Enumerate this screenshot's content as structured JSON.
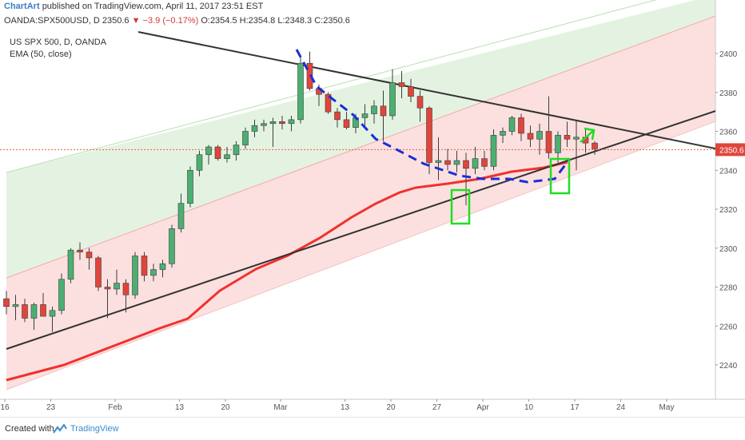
{
  "header": {
    "brand": "ChartArt",
    "published": "published on TradingView.com, April 11, 2017 23:51 EST"
  },
  "quote": {
    "symbol": "OANDA:SPX500USD, D",
    "last": "2350.6",
    "change": "▼ −3.9 (−0.17%)",
    "ohlc": "O:2354.5 H:2354.8 L:2348.3 C:2350.6"
  },
  "legend": {
    "symbol_line": "US SPX 500, D, OANDA",
    "indicator_line": "EMA (50, close)"
  },
  "footer": {
    "created_with": "Created with",
    "brand": "TradingView"
  },
  "colors": {
    "up": "#4caf72",
    "down": "#e0453b",
    "ema": "#f0312f",
    "trendline": "#333333",
    "dashed": "#1a2fd6",
    "box": "#22dd22",
    "price_line": "#e06040",
    "channel_green": "#e4f3e1",
    "channel_red": "#fbe0df"
  },
  "chart_data": {
    "type": "candlestick",
    "ylim": [
      2226,
      2414
    ],
    "y_ticks": [
      2240,
      2260,
      2280,
      2300,
      2320,
      2340,
      2360,
      2380,
      2400
    ],
    "x_tick_labels": [
      {
        "i": 0,
        "label": "16"
      },
      {
        "i": 5,
        "label": "23"
      },
      {
        "i": 12,
        "label": "Feb"
      },
      {
        "i": 19,
        "label": "13"
      },
      {
        "i": 24,
        "label": "20"
      },
      {
        "i": 30,
        "label": "Mar"
      },
      {
        "i": 37,
        "label": "13"
      },
      {
        "i": 42,
        "label": "20"
      },
      {
        "i": 47,
        "label": "27"
      },
      {
        "i": 52,
        "label": "Apr"
      },
      {
        "i": 57,
        "label": "10"
      },
      {
        "i": 62,
        "label": "17"
      },
      {
        "i": 67,
        "label": "24"
      },
      {
        "i": 72,
        "label": "May"
      }
    ],
    "last_price": 2350.6,
    "candles": [
      {
        "o": 2274,
        "h": 2278,
        "l": 2266,
        "c": 2270
      },
      {
        "o": 2270,
        "h": 2276,
        "l": 2263,
        "c": 2271
      },
      {
        "o": 2271,
        "h": 2274,
        "l": 2262,
        "c": 2264
      },
      {
        "o": 2264,
        "h": 2272,
        "l": 2258,
        "c": 2271
      },
      {
        "o": 2271,
        "h": 2277,
        "l": 2265,
        "c": 2265
      },
      {
        "o": 2265,
        "h": 2270,
        "l": 2257,
        "c": 2268
      },
      {
        "o": 2268,
        "h": 2287,
        "l": 2266,
        "c": 2284
      },
      {
        "o": 2284,
        "h": 2300,
        "l": 2282,
        "c": 2299
      },
      {
        "o": 2299,
        "h": 2303,
        "l": 2294,
        "c": 2298
      },
      {
        "o": 2298,
        "h": 2300,
        "l": 2289,
        "c": 2295
      },
      {
        "o": 2295,
        "h": 2296,
        "l": 2278,
        "c": 2280
      },
      {
        "o": 2280,
        "h": 2284,
        "l": 2264,
        "c": 2279
      },
      {
        "o": 2279,
        "h": 2289,
        "l": 2276,
        "c": 2282
      },
      {
        "o": 2282,
        "h": 2284,
        "l": 2267,
        "c": 2276
      },
      {
        "o": 2276,
        "h": 2298,
        "l": 2274,
        "c": 2296
      },
      {
        "o": 2296,
        "h": 2298,
        "l": 2283,
        "c": 2286
      },
      {
        "o": 2286,
        "h": 2292,
        "l": 2283,
        "c": 2289
      },
      {
        "o": 2289,
        "h": 2294,
        "l": 2285,
        "c": 2292
      },
      {
        "o": 2292,
        "h": 2312,
        "l": 2290,
        "c": 2310
      },
      {
        "o": 2310,
        "h": 2328,
        "l": 2308,
        "c": 2323
      },
      {
        "o": 2323,
        "h": 2342,
        "l": 2321,
        "c": 2340
      },
      {
        "o": 2340,
        "h": 2350,
        "l": 2337,
        "c": 2348
      },
      {
        "o": 2348,
        "h": 2353,
        "l": 2343,
        "c": 2352
      },
      {
        "o": 2352,
        "h": 2353,
        "l": 2345,
        "c": 2346
      },
      {
        "o": 2346,
        "h": 2352,
        "l": 2344,
        "c": 2348
      },
      {
        "o": 2348,
        "h": 2355,
        "l": 2345,
        "c": 2353
      },
      {
        "o": 2353,
        "h": 2362,
        "l": 2351,
        "c": 2360
      },
      {
        "o": 2360,
        "h": 2366,
        "l": 2357,
        "c": 2363
      },
      {
        "o": 2363,
        "h": 2366,
        "l": 2360,
        "c": 2364
      },
      {
        "o": 2364,
        "h": 2367,
        "l": 2352,
        "c": 2365
      },
      {
        "o": 2365,
        "h": 2368,
        "l": 2361,
        "c": 2364
      },
      {
        "o": 2364,
        "h": 2368,
        "l": 2360,
        "c": 2366
      },
      {
        "o": 2366,
        "h": 2398,
        "l": 2364,
        "c": 2395
      },
      {
        "o": 2395,
        "h": 2401,
        "l": 2381,
        "c": 2382
      },
      {
        "o": 2382,
        "h": 2384,
        "l": 2373,
        "c": 2379
      },
      {
        "o": 2379,
        "h": 2380,
        "l": 2369,
        "c": 2370
      },
      {
        "o": 2370,
        "h": 2372,
        "l": 2362,
        "c": 2366
      },
      {
        "o": 2366,
        "h": 2370,
        "l": 2361,
        "c": 2362
      },
      {
        "o": 2362,
        "h": 2369,
        "l": 2359,
        "c": 2367
      },
      {
        "o": 2367,
        "h": 2374,
        "l": 2362,
        "c": 2369
      },
      {
        "o": 2369,
        "h": 2376,
        "l": 2364,
        "c": 2373
      },
      {
        "o": 2373,
        "h": 2381,
        "l": 2355,
        "c": 2368
      },
      {
        "o": 2368,
        "h": 2392,
        "l": 2366,
        "c": 2385
      },
      {
        "o": 2385,
        "h": 2391,
        "l": 2377,
        "c": 2383
      },
      {
        "o": 2383,
        "h": 2387,
        "l": 2375,
        "c": 2378
      },
      {
        "o": 2378,
        "h": 2381,
        "l": 2365,
        "c": 2372
      },
      {
        "o": 2372,
        "h": 2373,
        "l": 2338,
        "c": 2344
      },
      {
        "o": 2344,
        "h": 2357,
        "l": 2335,
        "c": 2345
      },
      {
        "o": 2345,
        "h": 2351,
        "l": 2340,
        "c": 2343
      },
      {
        "o": 2343,
        "h": 2350,
        "l": 2339,
        "c": 2345
      },
      {
        "o": 2345,
        "h": 2349,
        "l": 2322,
        "c": 2341
      },
      {
        "o": 2341,
        "h": 2352,
        "l": 2338,
        "c": 2346
      },
      {
        "o": 2346,
        "h": 2350,
        "l": 2340,
        "c": 2342
      },
      {
        "o": 2342,
        "h": 2361,
        "l": 2340,
        "c": 2358
      },
      {
        "o": 2358,
        "h": 2362,
        "l": 2354,
        "c": 2360
      },
      {
        "o": 2360,
        "h": 2368,
        "l": 2358,
        "c": 2367
      },
      {
        "o": 2367,
        "h": 2369,
        "l": 2355,
        "c": 2359
      },
      {
        "o": 2359,
        "h": 2363,
        "l": 2352,
        "c": 2356
      },
      {
        "o": 2356,
        "h": 2364,
        "l": 2348,
        "c": 2360
      },
      {
        "o": 2360,
        "h": 2378,
        "l": 2346,
        "c": 2349
      },
      {
        "o": 2349,
        "h": 2360,
        "l": 2344,
        "c": 2358
      },
      {
        "o": 2358,
        "h": 2365,
        "l": 2352,
        "c": 2356
      },
      {
        "o": 2356,
        "h": 2366,
        "l": 2340,
        "c": 2357
      },
      {
        "o": 2357,
        "h": 2361,
        "l": 2349,
        "c": 2354
      },
      {
        "o": 2354,
        "h": 2355,
        "l": 2348,
        "c": 2351
      }
    ]
  }
}
